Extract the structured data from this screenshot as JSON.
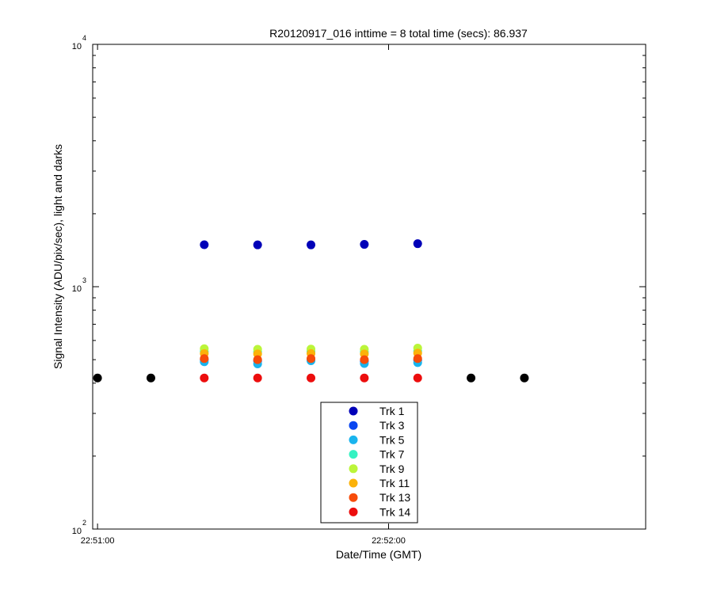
{
  "chart_data": {
    "type": "scatter",
    "title": "R20120917_016 inttime = 8 total time (secs): 86.937",
    "xlabel": "Date/Time (GMT)",
    "ylabel": "Signal Intensity (ADU/pix/sec), light and darks",
    "y_scale": "log",
    "ylim": [
      100,
      10000
    ],
    "y_ticks": [
      {
        "base": "10",
        "exp": "2",
        "value": 100
      },
      {
        "base": "10",
        "exp": "3",
        "value": 1000
      },
      {
        "base": "10",
        "exp": "4",
        "value": 10000
      }
    ],
    "xlim": [
      "22:50:59",
      "22:52:53"
    ],
    "x_ticks": [
      "22:51:00",
      "22:52:00"
    ],
    "grid": false,
    "legend_position": "bottom-center",
    "series": [
      {
        "name": "Trk 1",
        "color": "#0000b8",
        "x": [
          "22:51:22",
          "22:51:33",
          "22:51:44",
          "22:51:55",
          "22:52:06"
        ],
        "y": [
          1490,
          1488,
          1488,
          1495,
          1505
        ]
      },
      {
        "name": "Trk 3",
        "color": "#0a46f0",
        "x": [
          "22:51:22",
          "22:51:33",
          "22:51:44",
          "22:51:55",
          "22:52:06"
        ],
        "y": [
          500,
          495,
          502,
          493,
          498
        ]
      },
      {
        "name": "Trk 5",
        "color": "#19b4ee",
        "x": [
          "22:51:22",
          "22:51:33",
          "22:51:44",
          "22:51:55",
          "22:52:06"
        ],
        "y": [
          490,
          480,
          495,
          482,
          486
        ]
      },
      {
        "name": "Trk 7",
        "color": "#35f2c2",
        "x": [
          "22:51:22",
          "22:51:33",
          "22:51:44",
          "22:51:55",
          "22:52:06"
        ],
        "y": [
          540,
          538,
          540,
          538,
          542
        ]
      },
      {
        "name": "Trk 9",
        "color": "#bbf53a",
        "x": [
          "22:51:22",
          "22:51:33",
          "22:51:44",
          "22:51:55",
          "22:52:06"
        ],
        "y": [
          555,
          552,
          553,
          552,
          558
        ]
      },
      {
        "name": "Trk 11",
        "color": "#fbb20a",
        "x": [
          "22:51:22",
          "22:51:33",
          "22:51:44",
          "22:51:55",
          "22:52:06"
        ],
        "y": [
          530,
          528,
          530,
          528,
          532
        ]
      },
      {
        "name": "Trk 13",
        "color": "#f74c0a",
        "x": [
          "22:51:22",
          "22:51:33",
          "22:51:44",
          "22:51:55",
          "22:52:06"
        ],
        "y": [
          505,
          500,
          505,
          500,
          505
        ]
      },
      {
        "name": "Trk 14",
        "color": "#ec0d0d",
        "x": [
          "22:51:22",
          "22:51:33",
          "22:51:44",
          "22:51:55",
          "22:52:06"
        ],
        "y": [
          420,
          420,
          420,
          420,
          420
        ]
      },
      {
        "color": "#000000",
        "x": [
          "22:51:00",
          "22:51:11",
          "22:52:17",
          "22:52:28"
        ],
        "y": [
          420,
          420,
          420,
          420
        ]
      }
    ]
  }
}
